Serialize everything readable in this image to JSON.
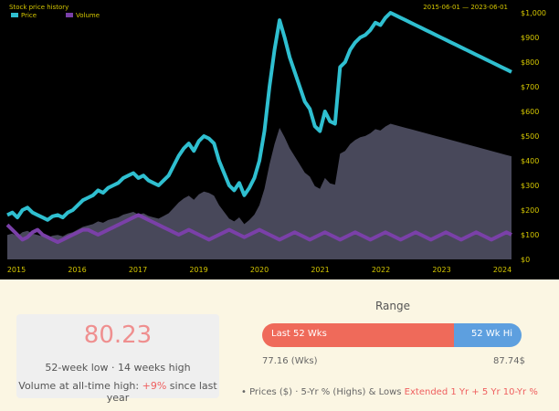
{
  "chart": {
    "legend_title": "Stock price history",
    "legend_series": [
      {
        "name": "Price",
        "color": "#2fbfd0"
      },
      {
        "name": "Volume",
        "color": "#7a40a8"
      }
    ],
    "top_right_label": "2015-06-01 — 2023-06-01",
    "y_ticks": [
      "$1,000",
      "$900",
      "$800",
      "$700",
      "$600",
      "$500",
      "$400",
      "$300",
      "$200",
      "$100",
      "$0"
    ],
    "x_ticks": [
      "2015",
      "2016",
      "2017",
      "2019",
      "2020",
      "2021",
      "2022",
      "2023",
      "2024"
    ],
    "colors": {
      "price": "#2fbfd0",
      "area": "#55556a",
      "volume": "#7a40a8",
      "axis_text": "#d4c600"
    }
  },
  "chart_data": {
    "type": "line",
    "ylim": [
      0,
      1000
    ],
    "x": [
      0,
      1,
      2,
      3,
      4,
      5,
      6,
      7,
      8,
      9,
      10,
      11,
      12,
      13,
      14,
      15,
      16,
      17,
      18,
      19,
      20,
      21,
      22,
      23,
      24,
      25,
      26,
      27,
      28,
      29,
      30,
      31,
      32,
      33,
      34,
      35,
      36,
      37,
      38,
      39,
      40,
      41,
      42,
      43,
      44,
      45,
      46,
      47,
      48,
      49,
      50,
      51,
      52,
      53,
      54,
      55,
      56,
      57,
      58,
      59,
      60,
      61,
      62,
      63,
      64,
      65,
      66,
      67,
      68,
      69,
      70,
      71,
      72,
      73,
      74,
      75,
      76,
      77,
      78,
      79,
      80,
      81,
      82,
      83,
      84,
      85,
      86,
      87,
      88,
      89,
      90,
      91,
      92,
      93,
      94,
      95,
      96,
      97,
      98,
      99,
      100
    ],
    "series": [
      {
        "name": "Price",
        "values": [
          180,
          190,
          170,
          200,
          210,
          190,
          180,
          170,
          160,
          175,
          180,
          170,
          190,
          200,
          220,
          240,
          250,
          260,
          280,
          270,
          290,
          300,
          310,
          330,
          340,
          350,
          330,
          340,
          320,
          310,
          300,
          320,
          340,
          380,
          420,
          450,
          470,
          440,
          480,
          500,
          490,
          470,
          400,
          350,
          300,
          280,
          310,
          260,
          290,
          330,
          400,
          520,
          700,
          850,
          970,
          900,
          820,
          760,
          700,
          640,
          610,
          540,
          520,
          600,
          560,
          550,
          780,
          800,
          850,
          880,
          900,
          910,
          930,
          960,
          950,
          980,
          1000,
          990,
          980,
          970,
          960,
          950,
          940,
          930,
          920,
          910,
          900,
          890,
          880,
          870,
          860,
          850,
          840,
          830,
          820,
          810,
          800,
          790,
          780,
          770,
          760
        ]
      },
      {
        "name": "Volume",
        "values": [
          140,
          120,
          100,
          80,
          90,
          110,
          120,
          100,
          90,
          80,
          70,
          80,
          90,
          100,
          110,
          120,
          120,
          110,
          100,
          110,
          120,
          130,
          140,
          150,
          160,
          170,
          180,
          170,
          160,
          150,
          140,
          130,
          120,
          110,
          100,
          110,
          120,
          110,
          100,
          90,
          80,
          90,
          100,
          110,
          120,
          110,
          100,
          90,
          100,
          110,
          120,
          110,
          100,
          90,
          80,
          90,
          100,
          110,
          100,
          90,
          80,
          90,
          100,
          110,
          100,
          90,
          80,
          90,
          100,
          110,
          100,
          90,
          80,
          90,
          100,
          110,
          100,
          90,
          80,
          90,
          100,
          110,
          100,
          90,
          80,
          90,
          100,
          110,
          100,
          90,
          80,
          90,
          100,
          110,
          100,
          90,
          80,
          90,
          100,
          110,
          100
        ]
      }
    ]
  },
  "stats": {
    "big_value": "80.23",
    "line1": "52-week low · 14 weeks high",
    "line2_prefix": "Volume at all-time high:",
    "line2_highlight": "+9%",
    "line2_suffix": "since last year"
  },
  "range": {
    "title": "Range",
    "fill_fraction": 0.74,
    "left_label": "Last 52 Wks",
    "right_label": "52 Wk Hi",
    "low_value": "77.16 (Wks)",
    "high_value": "87.74$"
  },
  "legend": {
    "prefix": "• Prices ($) · 5-Yr % (Highs) & Lows",
    "highlight": "Extended 1 Yr + 5 Yr 10-Yr %"
  }
}
